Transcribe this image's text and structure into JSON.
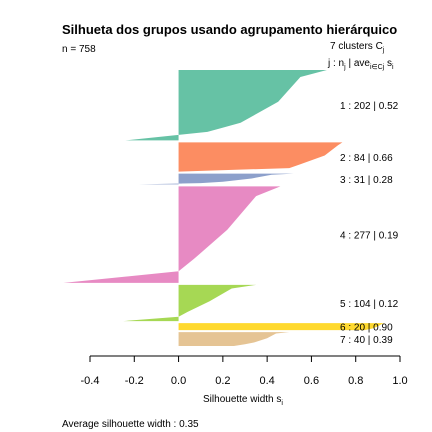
{
  "chart_data": {
    "type": "bar",
    "title": "Silhueta dos grupos usando agrupamento hierárquico",
    "n_label": "n = 758",
    "header_line1": "7  clusters  C",
    "header_sub_j": "j",
    "header_line2_j": "j :  n",
    "header_line2_nj_sub": "j",
    "header_line2_ave": " | ave",
    "header_line2_ave_sub": "i∈Cj",
    "header_line2_s": "  s",
    "header_line2_s_sub": "i",
    "xlabel": "Silhouette width  s",
    "xlabel_sub": "i",
    "xlim": [
      -0.4,
      1.0
    ],
    "ticks": [
      -0.4,
      -0.2,
      0.0,
      0.2,
      0.4,
      0.6,
      0.8,
      1.0
    ],
    "tick_labels": [
      "-0.4",
      "-0.2",
      "0.0",
      "0.2",
      "0.4",
      "0.6",
      "0.8",
      "1.0"
    ],
    "footer": "Average silhouette width :  0.35",
    "clusters": [
      {
        "id": "1",
        "n": 202,
        "avg": 0.52,
        "label": "1 :  202  |  0.52",
        "color": "#66c2a5",
        "max": 0.67,
        "mid1": 0.55,
        "mid2": 0.45,
        "lowmid": 0.28,
        "tail_start": 0.13,
        "min": -0.24
      },
      {
        "id": "2",
        "n": 84,
        "avg": 0.66,
        "label": "2 :  84  |  0.66",
        "color": "#fc8d62",
        "max": 0.74,
        "mid1": 0.72,
        "mid2": 0.66,
        "lowmid": 0.55,
        "tail_start": 0.5,
        "min": 0.0
      },
      {
        "id": "3",
        "n": 31,
        "avg": 0.28,
        "label": "3 :  31  |  0.28",
        "color": "#8da0cb",
        "max": 0.52,
        "mid1": 0.42,
        "mid2": 0.33,
        "lowmid": 0.2,
        "tail_start": 0.1,
        "min": -0.18
      },
      {
        "id": "4",
        "n": 277,
        "avg": 0.19,
        "label": "4 :  277  |  0.19",
        "color": "#e78ac3",
        "max": 0.46,
        "mid1": 0.35,
        "mid2": 0.22,
        "lowmid": 0.07,
        "tail_start": 0.0,
        "min": -0.52
      },
      {
        "id": "5",
        "n": 104,
        "avg": 0.12,
        "label": "5 :  104  |  0.12",
        "color": "#a6d854",
        "max": 0.35,
        "mid1": 0.24,
        "mid2": 0.14,
        "lowmid": 0.04,
        "tail_start": 0.0,
        "min": -0.25
      },
      {
        "id": "6",
        "n": 20,
        "avg": 0.9,
        "label": "6 :  20  |  0.90",
        "color": "#ffd92f",
        "max": 0.93,
        "mid1": 0.92,
        "mid2": 0.9,
        "lowmid": 0.88,
        "tail_start": 0.86,
        "min": 0.84
      },
      {
        "id": "7",
        "n": 40,
        "avg": 0.39,
        "label": "7 :  40  |  0.39",
        "color": "#e5c494",
        "max": 0.5,
        "mid1": 0.44,
        "mid2": 0.4,
        "lowmid": 0.34,
        "tail_start": 0.3,
        "min": 0.25
      }
    ]
  }
}
